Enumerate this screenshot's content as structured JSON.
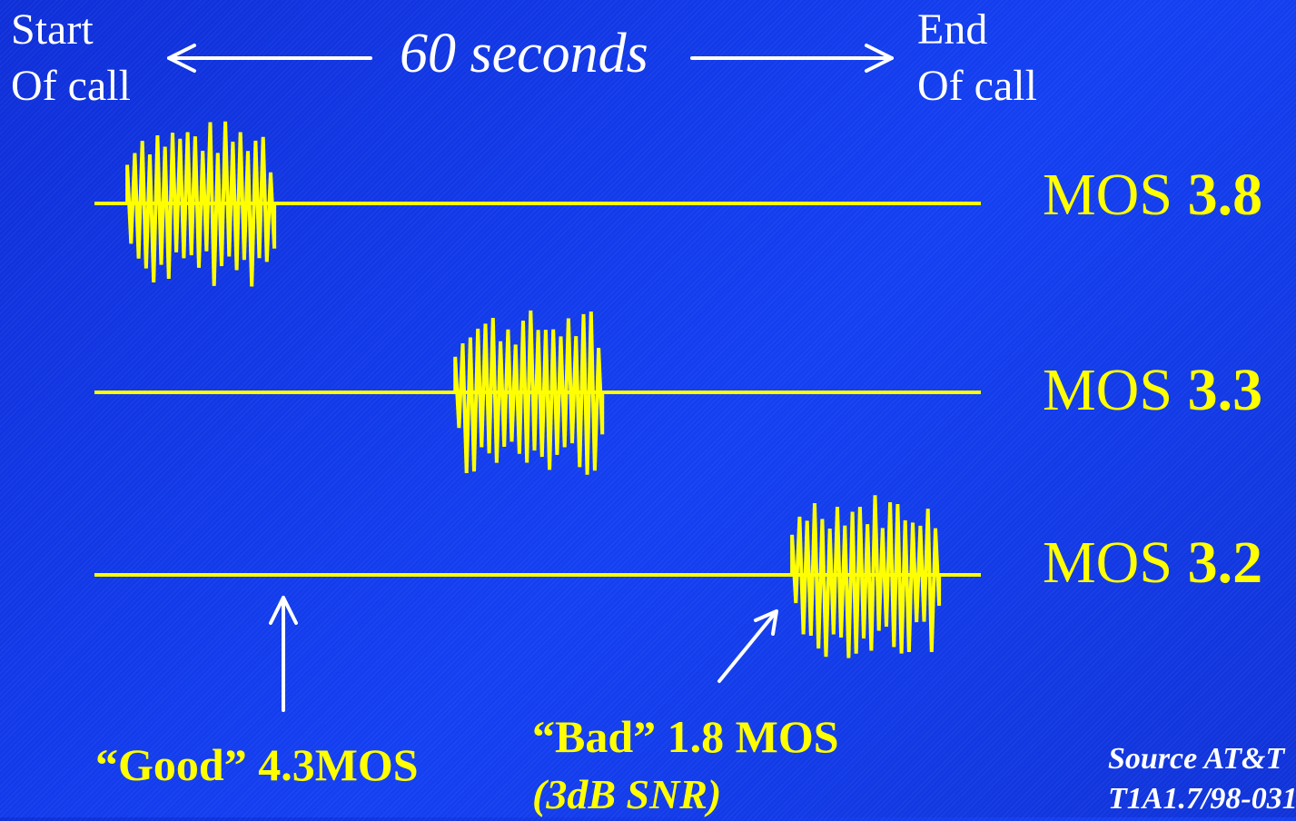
{
  "header": {
    "start_line1": "Start",
    "start_line2": "Of call",
    "duration": "60 seconds",
    "end_line1": "End",
    "end_line2": "Of call"
  },
  "tracks": [
    {
      "label": "MOS ",
      "value": "3.8",
      "burst_position": 0.12
    },
    {
      "label": "MOS ",
      "value": "3.3",
      "burst_position": 0.49
    },
    {
      "label": "MOS ",
      "value": "3.2",
      "burst_position": 0.87
    }
  ],
  "annotations": {
    "good": "“Good” 4.3MOS",
    "bad": "“Bad” 1.8 MOS",
    "bad_detail": "(3dB SNR)"
  },
  "source": {
    "line1": "Source AT&T",
    "line2": "T1A1.7/98-031"
  },
  "colors": {
    "background": "#1238e6",
    "signal": "#ffff00",
    "text": "#ffffff",
    "arrows": "#ffffff"
  },
  "icons": [
    "arrow-left-icon",
    "arrow-right-icon",
    "arrow-up-icon",
    "arrow-diagonal-icon"
  ]
}
